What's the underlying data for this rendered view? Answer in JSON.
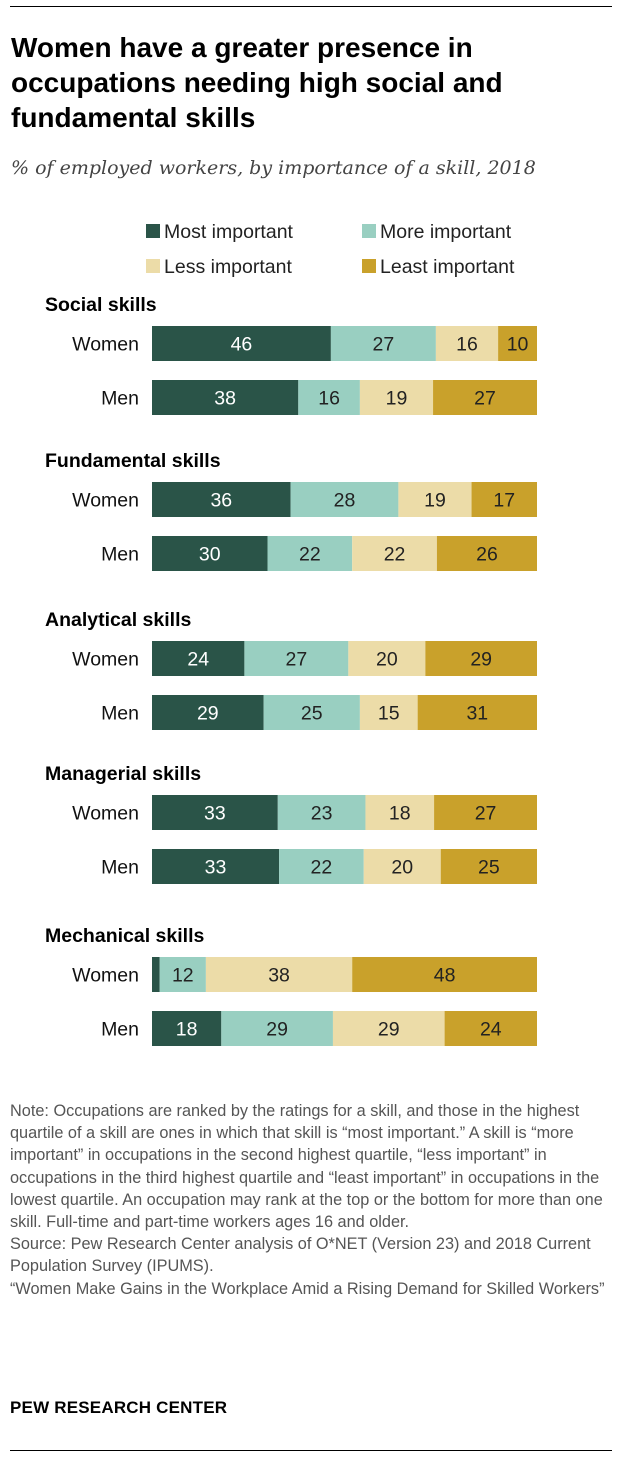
{
  "title": "Women have a greater presence in occupations needing high social and fundamental skills",
  "subtitle": "% of employed workers, by importance of a skill, 2018",
  "chart_data": {
    "type": "bar",
    "orientation": "horizontal",
    "stacked": true,
    "xlim": [
      0,
      100
    ],
    "legend_position": "top",
    "series_names": [
      "Most important",
      "More important",
      "Less important",
      "Least important"
    ],
    "colors": [
      "#2a5448",
      "#99cfc1",
      "#ecdca8",
      "#c9a12b"
    ],
    "label_colors": [
      "#ffffff",
      "#222222",
      "#222222",
      "#222222"
    ],
    "groups": [
      {
        "name": "Social skills",
        "rows": [
          {
            "label": "Women",
            "values": [
              46,
              27,
              16,
              10
            ],
            "labels": [
              "46",
              "27",
              "16",
              "10"
            ]
          },
          {
            "label": "Men",
            "values": [
              38,
              16,
              19,
              27
            ],
            "labels": [
              "38",
              "16",
              "19",
              "27"
            ]
          }
        ]
      },
      {
        "name": "Fundamental skills",
        "rows": [
          {
            "label": "Women",
            "values": [
              36,
              28,
              19,
              17
            ],
            "labels": [
              "36",
              "28",
              "19",
              "17"
            ]
          },
          {
            "label": "Men",
            "values": [
              30,
              22,
              22,
              26
            ],
            "labels": [
              "30",
              "22",
              "22",
              "26"
            ]
          }
        ]
      },
      {
        "name": "Analytical skills",
        "rows": [
          {
            "label": "Women",
            "values": [
              24,
              27,
              20,
              29
            ],
            "labels": [
              "24",
              "27",
              "20",
              "29"
            ]
          },
          {
            "label": "Men",
            "values": [
              29,
              25,
              15,
              31
            ],
            "labels": [
              "29",
              "25",
              "15",
              "31"
            ]
          }
        ]
      },
      {
        "name": "Managerial skills",
        "rows": [
          {
            "label": "Women",
            "values": [
              33,
              23,
              18,
              27
            ],
            "labels": [
              "33",
              "23",
              "18",
              "27"
            ]
          },
          {
            "label": "Men",
            "values": [
              33,
              22,
              20,
              25
            ],
            "labels": [
              "33",
              "22",
              "20",
              "25"
            ]
          }
        ]
      },
      {
        "name": "Mechanical skills",
        "rows": [
          {
            "label": "Women",
            "values": [
              2,
              12,
              38,
              48
            ],
            "labels": [
              "",
              "12",
              "38",
              "48"
            ]
          },
          {
            "label": "Men",
            "values": [
              18,
              29,
              29,
              24
            ],
            "labels": [
              "18",
              "29",
              "29",
              "24"
            ]
          }
        ]
      }
    ]
  },
  "notes": [
    "Note: Occupations are ranked by the ratings for a skill, and those in the highest quartile of a skill are ones in which that skill is “most important.” A skill is “more important” in occupations in the second highest quartile, “less important” in occupations in the third highest quartile and “least important” in occupations in the lowest quartile. An occupation may rank at the top or the bottom for more than one skill. Full-time and part-time workers ages 16 and older.",
    "Source: Pew Research Center analysis of O*NET (Version 23) and 2018 Current Population Survey (IPUMS).",
    "“Women Make Gains in the Workplace Amid a Rising Demand for Skilled Workers”"
  ],
  "organization": "PEW RESEARCH CENTER"
}
